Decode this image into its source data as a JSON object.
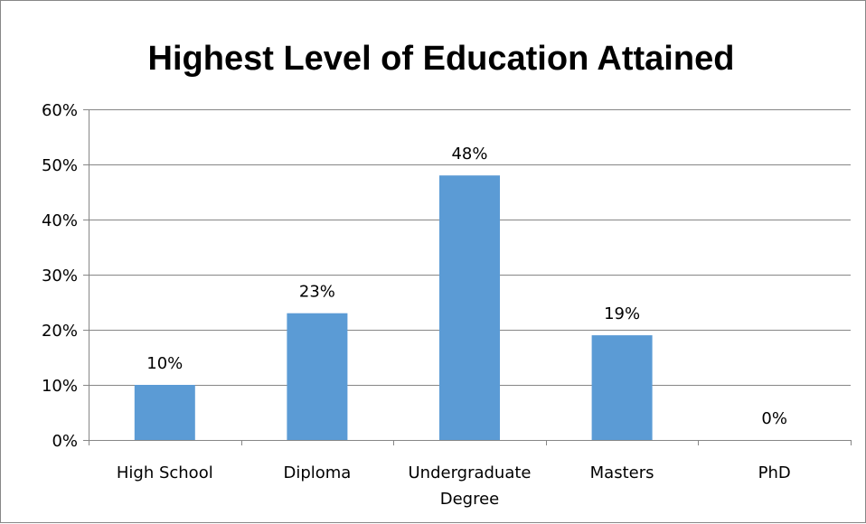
{
  "chart_data": {
    "type": "bar",
    "title": "Highest Level of Education Attained",
    "xlabel": "",
    "ylabel": "",
    "categories": [
      [
        "High School"
      ],
      [
        "Diploma"
      ],
      [
        "Undergraduate",
        "Degree"
      ],
      [
        "Masters"
      ],
      [
        "PhD"
      ]
    ],
    "values": [
      10,
      23,
      48,
      19,
      0
    ],
    "data_labels": [
      "10%",
      "23%",
      "48%",
      "19%",
      "0%"
    ],
    "ylim": [
      0,
      60
    ],
    "yticks": [
      0,
      10,
      20,
      30,
      40,
      50,
      60
    ],
    "ytick_labels": [
      "0%",
      "10%",
      "20%",
      "30%",
      "40%",
      "50%",
      "60%"
    ],
    "grid": true,
    "legend": "none",
    "bar_color": "#5B9BD5",
    "grid_color": "#868686"
  }
}
